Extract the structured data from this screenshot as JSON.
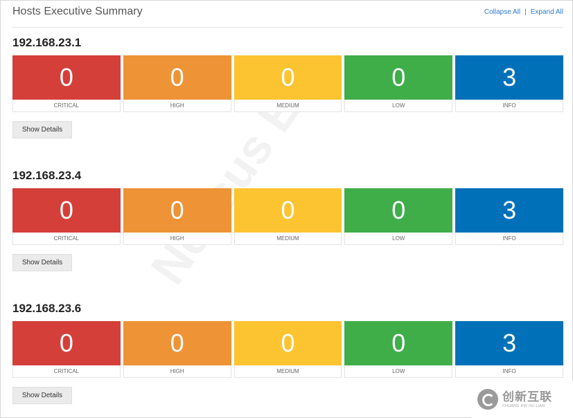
{
  "header": {
    "title": "Hosts Executive Summary",
    "collapse_label": "Collapse All",
    "separator": "|",
    "expand_label": "Expand All"
  },
  "hosts": [
    {
      "ip": "192.168.23.1",
      "severities": [
        {
          "label": "CRITICAL",
          "count": "0",
          "color": "#d43f3a"
        },
        {
          "label": "HIGH",
          "count": "0",
          "color": "#ee9336"
        },
        {
          "label": "MEDIUM",
          "count": "0",
          "color": "#fdc431"
        },
        {
          "label": "LOW",
          "count": "0",
          "color": "#3fae49"
        },
        {
          "label": "INFO",
          "count": "3",
          "color": "#0071b9"
        }
      ],
      "details_label": "Show Details"
    },
    {
      "ip": "192.168.23.4",
      "severities": [
        {
          "label": "CRITICAL",
          "count": "0",
          "color": "#d43f3a"
        },
        {
          "label": "HIGH",
          "count": "0",
          "color": "#ee9336"
        },
        {
          "label": "MEDIUM",
          "count": "0",
          "color": "#fdc431"
        },
        {
          "label": "LOW",
          "count": "0",
          "color": "#3fae49"
        },
        {
          "label": "INFO",
          "count": "3",
          "color": "#0071b9"
        }
      ],
      "details_label": "Show Details"
    },
    {
      "ip": "192.168.23.6",
      "severities": [
        {
          "label": "CRITICAL",
          "count": "0",
          "color": "#d43f3a"
        },
        {
          "label": "HIGH",
          "count": "0",
          "color": "#ee9336"
        },
        {
          "label": "MEDIUM",
          "count": "0",
          "color": "#fdc431"
        },
        {
          "label": "LOW",
          "count": "0",
          "color": "#3fae49"
        },
        {
          "label": "INFO",
          "count": "3",
          "color": "#0071b9"
        }
      ],
      "details_label": "Show Details"
    }
  ],
  "watermark": {
    "text": "Nessus Ess"
  },
  "logo": {
    "name": "创新互联",
    "subtitle": "CHUANG XIN HU LIAN",
    "icon": "logo-icon"
  }
}
